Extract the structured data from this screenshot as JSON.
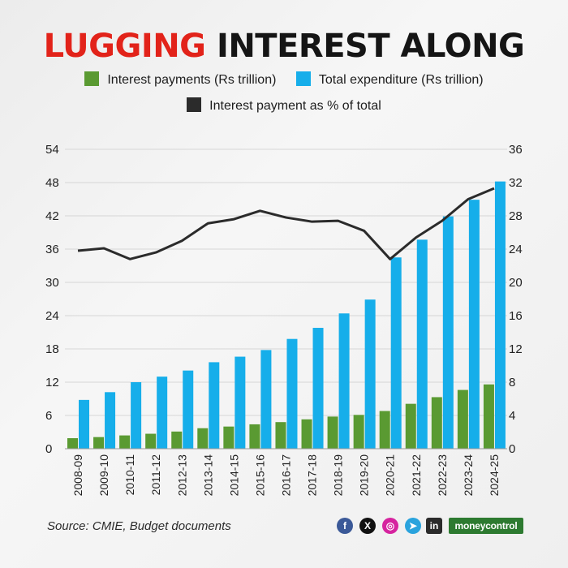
{
  "header": {
    "title_red": "LUGGING",
    "title_rest": " INTEREST ALONG"
  },
  "legend": {
    "interest": "Interest payments (Rs trillion)",
    "total": "Total expenditure (Rs trillion)",
    "pct": "Interest payment as % of total"
  },
  "colors": {
    "interest": "#5a9a32",
    "total": "#16aeea",
    "pct": "#2b2b2b",
    "accent": "#e2231a"
  },
  "footer": {
    "source": "Source: CMIE, Budget documents",
    "brand": "moneycontrol"
  },
  "social_icons": [
    "facebook-icon",
    "x-icon",
    "instagram-icon",
    "telegram-icon",
    "linkedin-icon"
  ],
  "chart_data": {
    "type": "bar",
    "categories": [
      "2008-09",
      "2009-10",
      "2010-11",
      "2011-12",
      "2012-13",
      "2013-14",
      "2014-15",
      "2015-16",
      "2016-17",
      "2017-18",
      "2018-19",
      "2019-20",
      "2020-21",
      "2021-22",
      "2022-23",
      "2023-24",
      "2024-25"
    ],
    "series": [
      {
        "name": "Interest payments (Rs trillion)",
        "type": "bar",
        "axis": "left",
        "values": [
          1.9,
          2.1,
          2.4,
          2.7,
          3.1,
          3.7,
          4.0,
          4.4,
          4.8,
          5.3,
          5.8,
          6.1,
          6.8,
          8.1,
          9.3,
          10.6,
          11.6
        ]
      },
      {
        "name": "Total expenditure (Rs trillion)",
        "type": "bar",
        "axis": "left",
        "values": [
          8.8,
          10.2,
          12.0,
          13.0,
          14.1,
          15.6,
          16.6,
          17.8,
          19.8,
          21.8,
          24.4,
          26.9,
          34.5,
          37.7,
          41.9,
          44.9,
          48.2
        ]
      },
      {
        "name": "Interest payment as % of total",
        "type": "line",
        "axis": "right",
        "values": [
          23.8,
          24.1,
          22.8,
          23.6,
          25.0,
          27.1,
          27.6,
          28.6,
          27.8,
          27.3,
          27.4,
          26.2,
          22.8,
          25.4,
          27.4,
          30.0,
          31.3
        ]
      }
    ],
    "yticks_left": [
      "0",
      "6",
      "12",
      "18",
      "24",
      "30",
      "36",
      "42",
      "48",
      "54"
    ],
    "yticks_right": [
      "0",
      "4",
      "8",
      "12",
      "16",
      "20",
      "24",
      "28",
      "32",
      "36"
    ],
    "ylim_left": [
      0,
      54
    ],
    "ylim_right": [
      0,
      36
    ],
    "grid": "horizontal"
  }
}
